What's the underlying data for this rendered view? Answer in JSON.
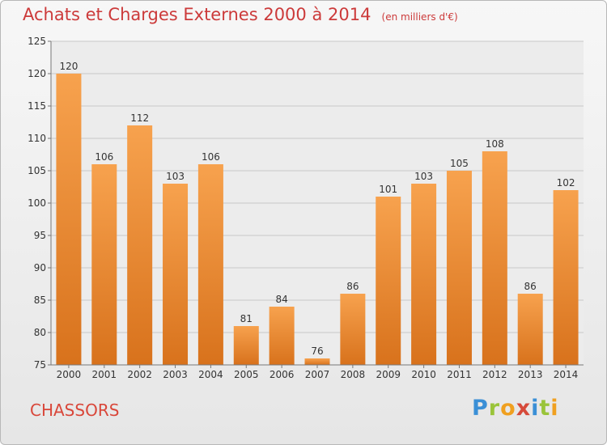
{
  "title": "Achats et Charges Externes 2000 à 2014",
  "unit": "(en milliers d'€)",
  "commune": "CHASSORS",
  "logo": {
    "p": "P",
    "r": "r",
    "o": "o",
    "x": "x",
    "i1": "i",
    "t": "t",
    "i2": "i"
  },
  "chart_data": {
    "type": "bar",
    "title": "Achats et Charges Externes 2000 à 2014",
    "subtitle": "(en milliers d'€)",
    "categories": [
      "2000",
      "2001",
      "2002",
      "2003",
      "2004",
      "2005",
      "2006",
      "2007",
      "2008",
      "2009",
      "2010",
      "2011",
      "2012",
      "2013",
      "2014"
    ],
    "values": [
      120,
      106,
      112,
      103,
      106,
      81,
      84,
      76,
      86,
      101,
      103,
      105,
      108,
      86,
      102
    ],
    "ylim": [
      75,
      125
    ],
    "yticks": [
      75,
      80,
      85,
      90,
      95,
      100,
      105,
      110,
      115,
      120,
      125
    ],
    "grid": true,
    "bar_color": "#f08a24"
  }
}
